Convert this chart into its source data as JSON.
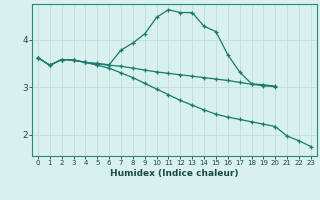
{
  "xlabel": "Humidex (Indice chaleur)",
  "bg_color": "#d8f0ee",
  "line_color": "#1a7a6e",
  "grid_color_major": "#c0dede",
  "grid_color_minor": "#daeaea",
  "xlim": [
    -0.5,
    23.5
  ],
  "ylim": [
    1.55,
    4.75
  ],
  "yticks": [
    2,
    3,
    4
  ],
  "xticks": [
    0,
    1,
    2,
    3,
    4,
    5,
    6,
    7,
    8,
    9,
    10,
    11,
    12,
    13,
    14,
    15,
    16,
    17,
    18,
    19,
    20,
    21,
    22,
    23
  ],
  "line1_x": [
    0,
    1,
    2,
    3,
    4,
    5,
    6,
    7,
    8,
    9,
    10,
    11,
    12,
    13,
    14,
    15,
    16,
    17,
    18,
    19,
    20
  ],
  "line1_y": [
    3.62,
    3.46,
    3.58,
    3.57,
    3.52,
    3.5,
    3.47,
    3.78,
    3.93,
    4.12,
    4.47,
    4.63,
    4.57,
    4.57,
    4.28,
    4.17,
    3.68,
    3.32,
    3.07,
    3.05,
    3.02
  ],
  "line2_x": [
    0,
    1,
    2,
    3,
    4,
    5,
    6,
    7,
    8,
    9,
    10,
    11,
    12,
    13,
    14,
    15,
    16,
    17,
    18,
    19,
    20
  ],
  "line2_y": [
    3.62,
    3.46,
    3.58,
    3.57,
    3.52,
    3.49,
    3.46,
    3.44,
    3.4,
    3.36,
    3.32,
    3.29,
    3.26,
    3.23,
    3.2,
    3.17,
    3.14,
    3.1,
    3.06,
    3.03,
    3.01
  ],
  "line3_x": [
    0,
    1,
    2,
    3,
    4,
    5,
    6,
    7,
    8,
    9,
    10,
    11,
    12,
    13,
    14,
    15,
    16,
    17,
    18,
    19,
    20,
    21,
    22,
    23
  ],
  "line3_y": [
    3.62,
    3.46,
    3.58,
    3.57,
    3.52,
    3.46,
    3.4,
    3.3,
    3.2,
    3.08,
    2.96,
    2.84,
    2.72,
    2.62,
    2.52,
    2.43,
    2.37,
    2.32,
    2.27,
    2.22,
    2.17,
    1.97,
    1.87,
    1.75
  ]
}
